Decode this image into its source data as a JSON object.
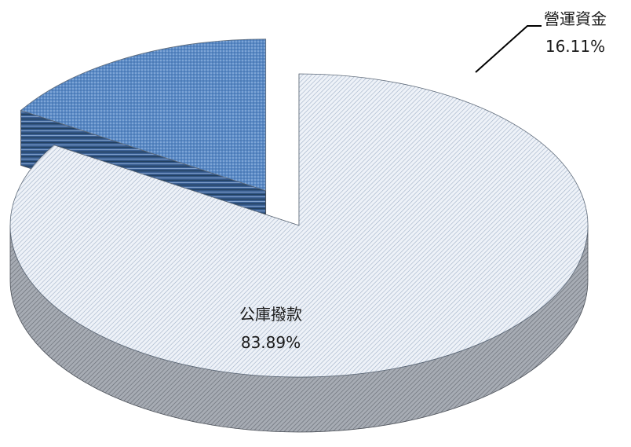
{
  "chart_data": {
    "type": "pie",
    "title": "",
    "slices": [
      {
        "name": "公庫撥款",
        "value": 83.89,
        "value_label": "83.89%",
        "color": "#dde6f0",
        "side_color": "#8c9199",
        "exploded": false
      },
      {
        "name": "營運資金",
        "value": 16.11,
        "value_label": "16.11%",
        "color": "#4f80bf",
        "side_color": "#2c4c77",
        "exploded": true
      }
    ],
    "style": "3d-exploded",
    "legend": "none"
  }
}
